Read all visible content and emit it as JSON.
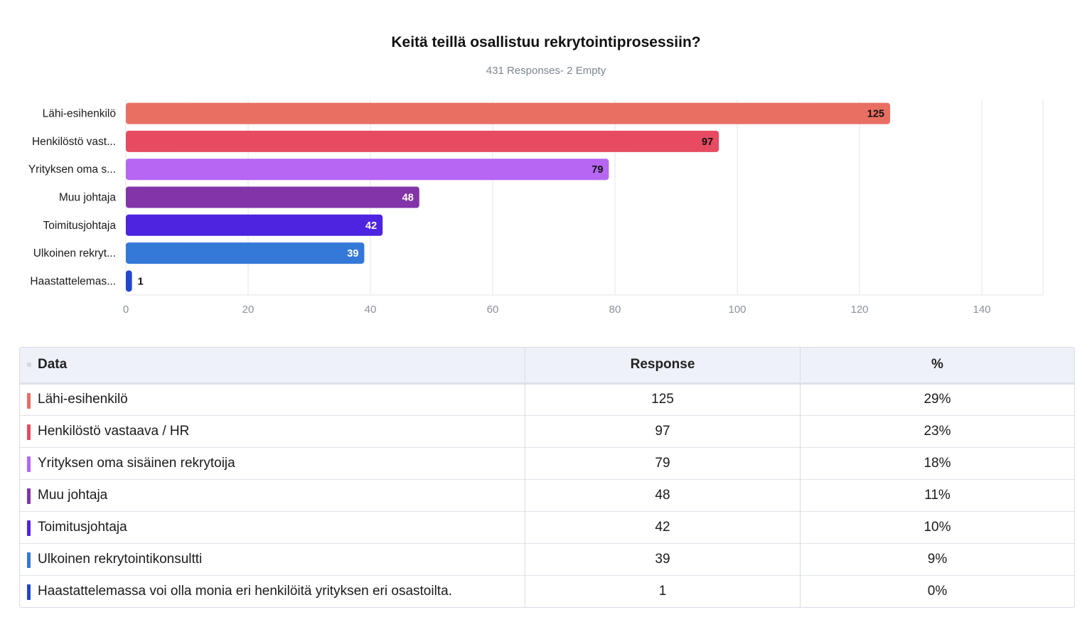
{
  "chart_data": {
    "type": "bar",
    "orientation": "horizontal",
    "title": "Keitä teillä osallistuu rekrytointiprosessiin?",
    "subtitle": "431 Responses- 2 Empty",
    "categories": [
      "Lähi-esihenkilö",
      "Henkilöstö vast...",
      "Yrityksen oma s...",
      "Muu johtaja",
      "Toimitusjohtaja",
      "Ulkoinen rekryt...",
      "Haastattelemas..."
    ],
    "values": [
      125,
      97,
      79,
      48,
      42,
      39,
      1
    ],
    "colors": [
      "#e96f63",
      "#e64b61",
      "#b766f3",
      "#8234a8",
      "#4e24e1",
      "#3478d8",
      "#2146d1"
    ],
    "value_label_colors": [
      "#111111",
      "#111111",
      "#111111",
      "#ffffff",
      "#ffffff",
      "#ffffff",
      "#111111"
    ],
    "x_ticks": [
      0,
      20,
      40,
      60,
      80,
      100,
      120,
      140
    ],
    "xlim": [
      0,
      150
    ],
    "grid": true,
    "legend": "none"
  },
  "table": {
    "headers": {
      "data": "Data",
      "response": "Response",
      "percent": "%"
    },
    "rows": [
      {
        "label": "Lähi-esihenkilö",
        "response": "125",
        "percent": "29%",
        "color": "#e96f63"
      },
      {
        "label": "Henkilöstö vastaava / HR",
        "response": "97",
        "percent": "23%",
        "color": "#e64b61"
      },
      {
        "label": "Yrityksen oma sisäinen rekrytoija",
        "response": "79",
        "percent": "18%",
        "color": "#b766f3"
      },
      {
        "label": "Muu johtaja",
        "response": "48",
        "percent": "11%",
        "color": "#8234a8"
      },
      {
        "label": "Toimitusjohtaja",
        "response": "42",
        "percent": "10%",
        "color": "#4e24e1"
      },
      {
        "label": "Ulkoinen rekrytointikonsultti",
        "response": "39",
        "percent": "9%",
        "color": "#3478d8"
      },
      {
        "label": "Haastattelemassa voi olla monia eri henkilöitä yrityksen eri osastoilta.",
        "response": "1",
        "percent": "0%",
        "color": "#2146d1"
      }
    ]
  }
}
